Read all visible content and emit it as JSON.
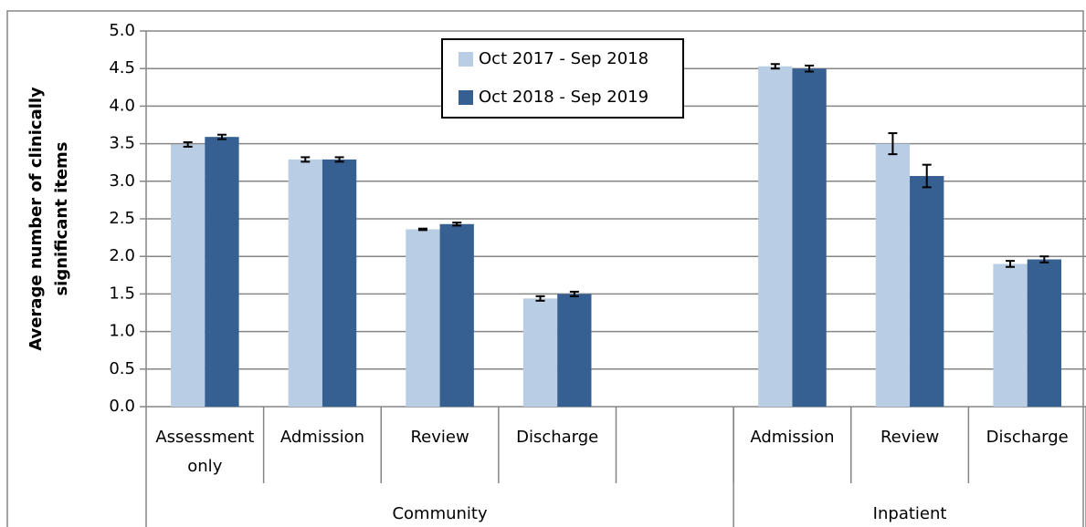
{
  "chart_data": {
    "type": "bar",
    "ylabel": [
      "Average number of clinically",
      "significant items"
    ],
    "categories": [
      "Assessment only",
      "Admission",
      "Review",
      "Discharge",
      null,
      "Admission",
      "Review",
      "Discharge"
    ],
    "groups": [
      {
        "name": "Community",
        "count": 5
      },
      {
        "name": "Inpatient",
        "count": 3
      }
    ],
    "series": [
      {
        "name": "Oct 2017 - Sep 2018",
        "color": "#b9cde5",
        "values": [
          3.49,
          3.29,
          2.36,
          1.44,
          null,
          4.53,
          3.5,
          1.9
        ],
        "errors": [
          0.03,
          0.03,
          0.01,
          0.03,
          null,
          0.03,
          0.14,
          0.04
        ]
      },
      {
        "name": "Oct 2018 - Sep 2019",
        "color": "#366092",
        "values": [
          3.59,
          3.29,
          2.43,
          1.5,
          null,
          4.5,
          3.07,
          1.96
        ],
        "errors": [
          0.03,
          0.03,
          0.02,
          0.03,
          null,
          0.04,
          0.15,
          0.04
        ]
      }
    ],
    "ylim": [
      0,
      5
    ],
    "yticks": [
      {
        "value": 0,
        "label": "0.0"
      },
      {
        "value": 0.5,
        "label": "0.5"
      },
      {
        "value": 1,
        "label": "1.0"
      },
      {
        "value": 1.5,
        "label": "1.5"
      },
      {
        "value": 2,
        "label": "2.0"
      },
      {
        "value": 2.5,
        "label": "2.5"
      },
      {
        "value": 3,
        "label": "3.0"
      },
      {
        "value": 3.5,
        "label": "3.5"
      },
      {
        "value": 4,
        "label": "4.0"
      },
      {
        "value": 4.5,
        "label": "4.5"
      },
      {
        "value": 5,
        "label": "5.0"
      }
    ],
    "grid": true,
    "legend": "top"
  }
}
